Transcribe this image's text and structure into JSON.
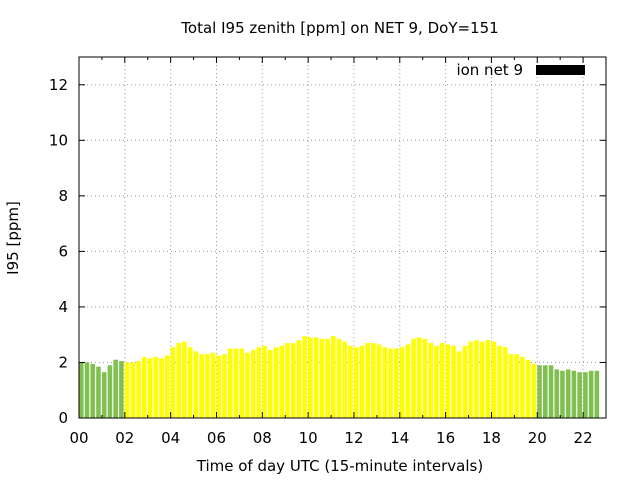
{
  "chart_data": {
    "type": "bar",
    "title": "Total I95 zenith [ppm] on NET 9, DoY=151",
    "xlabel": "Time of day UTC (15-minute intervals)",
    "ylabel": "I95 [ppm]",
    "xlim": [
      0,
      23
    ],
    "ylim": [
      0,
      13
    ],
    "x_ticks": [
      "00",
      "02",
      "04",
      "06",
      "08",
      "10",
      "12",
      "14",
      "16",
      "18",
      "20",
      "22"
    ],
    "y_ticks": [
      "0",
      "2",
      "4",
      "6",
      "8",
      "10",
      "12"
    ],
    "grid": true,
    "legend": {
      "label": "ion net 9",
      "color": "#000000",
      "position": "top-right"
    },
    "colors": {
      "night": "#80c050",
      "day": "#ffff00"
    },
    "bar_interval_hours": 0.25,
    "bar_start_hour": 0,
    "day_window_hours": [
      2.0,
      20.0
    ],
    "values": [
      2.0,
      2.0,
      1.95,
      1.85,
      1.65,
      1.9,
      2.1,
      2.05,
      2.0,
      2.0,
      2.05,
      2.2,
      2.15,
      2.2,
      2.15,
      2.25,
      2.55,
      2.7,
      2.75,
      2.55,
      2.4,
      2.3,
      2.3,
      2.35,
      2.25,
      2.3,
      2.5,
      2.5,
      2.5,
      2.35,
      2.45,
      2.55,
      2.6,
      2.45,
      2.55,
      2.6,
      2.7,
      2.7,
      2.8,
      2.95,
      2.9,
      2.9,
      2.85,
      2.85,
      2.95,
      2.85,
      2.75,
      2.6,
      2.55,
      2.6,
      2.7,
      2.7,
      2.65,
      2.55,
      2.5,
      2.5,
      2.55,
      2.65,
      2.85,
      2.9,
      2.85,
      2.7,
      2.6,
      2.7,
      2.65,
      2.6,
      2.4,
      2.6,
      2.75,
      2.8,
      2.75,
      2.8,
      2.75,
      2.6,
      2.55,
      2.3,
      2.3,
      2.2,
      2.1,
      1.95,
      1.9,
      1.9,
      1.9,
      1.75,
      1.7,
      1.75,
      1.7,
      1.65,
      1.65,
      1.7,
      1.7
    ]
  }
}
